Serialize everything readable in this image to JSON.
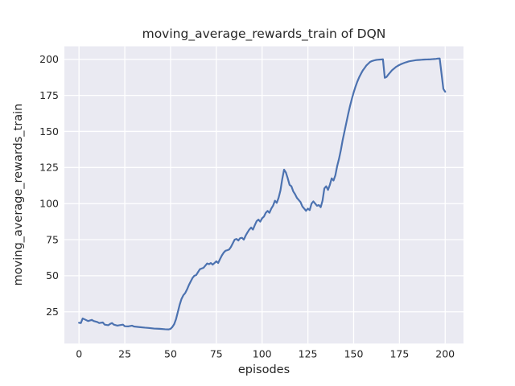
{
  "colors": {
    "figure_background": "#ffffff",
    "plot_background": "#eaeaf2",
    "grid": "#ffffff",
    "line": "#4c72b0",
    "text": "#262626"
  },
  "chart_data": {
    "type": "line",
    "title": "moving_average_rewards_train of DQN",
    "xlabel": "episodes",
    "ylabel": "moving_average_rewards_train",
    "xlim": [
      -8,
      210
    ],
    "ylim": [
      3,
      209
    ],
    "xticks": [
      0,
      25,
      50,
      75,
      100,
      125,
      150,
      175,
      200
    ],
    "yticks": [
      25,
      50,
      75,
      100,
      125,
      150,
      175,
      200
    ],
    "grid": true,
    "legend_position": "none",
    "series": [
      {
        "name": "moving_average_rewards_train",
        "color": "#4c72b0",
        "x": [
          0,
          1,
          2,
          3,
          5,
          7,
          8,
          10,
          11,
          13,
          14,
          16,
          17,
          18,
          19,
          21,
          22,
          24,
          25,
          27,
          29,
          30,
          33,
          36,
          38,
          41,
          44,
          47,
          49,
          50,
          51,
          52,
          53,
          54,
          55,
          56,
          57,
          58,
          59,
          60,
          61,
          62,
          63,
          64,
          65,
          66,
          67,
          68,
          69,
          70,
          71,
          72,
          73,
          74,
          75,
          76,
          77,
          78,
          79,
          80,
          81,
          82,
          83,
          84,
          85,
          86,
          87,
          88,
          89,
          90,
          91,
          92,
          93,
          94,
          95,
          96,
          97,
          98,
          99,
          100,
          101,
          102,
          103,
          104,
          105,
          106,
          107,
          108,
          109,
          110,
          111,
          112,
          113,
          114,
          115,
          116,
          117,
          118,
          119,
          120,
          121,
          122,
          123,
          124,
          125,
          126,
          127,
          128,
          129,
          130,
          131,
          132,
          133,
          134,
          135,
          136,
          137,
          138,
          139,
          140,
          141,
          142,
          143,
          144,
          145,
          146,
          147,
          148,
          149,
          150,
          151,
          152,
          153,
          154,
          155,
          156,
          157,
          158,
          159,
          160,
          161,
          162,
          163,
          164,
          165,
          166,
          167,
          168,
          169,
          170,
          171,
          172,
          173,
          174,
          175,
          176,
          177,
          178,
          179,
          180,
          181,
          182,
          183,
          184,
          185,
          186,
          187,
          188,
          189,
          190,
          191,
          192,
          193,
          194,
          195,
          196,
          197,
          198,
          199,
          200
        ],
        "y": [
          17.4,
          17.2,
          20.4,
          19.8,
          18.6,
          19.4,
          18.6,
          17.9,
          17.2,
          17.6,
          16.1,
          15.7,
          16.6,
          17.2,
          16.1,
          15.4,
          15.7,
          16.1,
          15.0,
          14.9,
          15.4,
          14.8,
          14.4,
          14.0,
          13.8,
          13.4,
          13.2,
          12.9,
          12.8,
          13.2,
          14.5,
          16.5,
          20,
          25,
          30,
          34,
          36.5,
          38,
          40.5,
          43.5,
          46,
          48.5,
          50,
          50.5,
          52.5,
          54.5,
          55,
          55.5,
          57,
          58.5,
          58,
          58.8,
          57.7,
          58.8,
          60,
          58.8,
          61.5,
          64,
          66,
          67.3,
          67.7,
          68.2,
          70,
          72.5,
          75,
          75.5,
          74.4,
          76,
          76.3,
          75,
          77.8,
          80,
          82,
          83.4,
          82,
          85,
          87.8,
          88.9,
          87.5,
          89.8,
          91,
          93.6,
          94.9,
          93.6,
          96.5,
          98.6,
          102,
          100.5,
          104,
          109,
          117,
          123.5,
          121.5,
          117.5,
          113,
          112,
          108.5,
          106.5,
          104,
          102.5,
          101,
          98,
          96.5,
          95,
          96.5,
          95.5,
          100,
          101.5,
          100,
          98.5,
          99,
          97.5,
          102,
          110.5,
          112,
          109.5,
          113,
          117.5,
          116,
          119.5,
          126,
          131,
          137,
          144,
          150,
          156,
          162,
          167.5,
          172.5,
          177,
          181,
          184.5,
          187.5,
          190,
          192.3,
          194,
          195.8,
          197,
          198.2,
          198.8,
          199.2,
          199.5,
          199.7,
          199.8,
          199.9,
          200,
          187.2,
          187.8,
          189.5,
          191,
          192.5,
          193.5,
          194.6,
          195.4,
          196.1,
          196.7,
          197.2,
          197.7,
          198.1,
          198.5,
          198.8,
          199.0,
          199.2,
          199.4,
          199.5,
          199.6,
          199.7,
          199.8,
          199.85,
          199.9,
          199.95,
          200.0,
          200.1,
          200.2,
          200.3,
          200.5,
          200.6,
          190,
          179.5,
          177.5
        ]
      }
    ]
  }
}
